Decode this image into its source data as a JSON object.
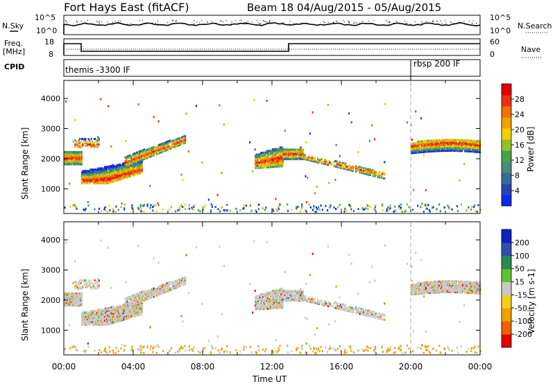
{
  "header": {
    "title": "Fort Hays East (fitACF)",
    "beam_info": "Beam 18 04/Aug/2015 - 05/Aug/2015"
  },
  "top_panels": {
    "nsky_label": "N.Sky",
    "nsky_ticks": [
      "10^5",
      "10^0"
    ],
    "nsearch_ticks": [
      "10^5",
      "10^0"
    ],
    "nsearch_label": "N.Search",
    "freq_label_1": "Freq.",
    "freq_label_2": "[MHz]",
    "freq_ticks": [
      "18",
      "8"
    ],
    "nave_ticks": [
      "60",
      "0"
    ],
    "nave_label": "Nave",
    "cpid_label": "CPID",
    "cpid_mode_1": "themis -3300 IF",
    "cpid_mode_2": "rbsp 200 IF"
  },
  "chart_data": [
    {
      "type": "heatmap",
      "title": "",
      "xlabel": "Time UT",
      "ylabel": "Slant Range [km]",
      "xlim": [
        0,
        24
      ],
      "ylim": [
        180,
        4600
      ],
      "x_ticks": [
        "00:00",
        "04:00",
        "08:00",
        "12:00",
        "16:00",
        "20:00",
        "00:00"
      ],
      "y_ticks": [
        "1000",
        "2000",
        "3000",
        "4000"
      ],
      "colorbar": {
        "label": "Power [dB]",
        "ticks": [
          "4",
          "8",
          "12",
          "16",
          "20",
          "24",
          "28"
        ],
        "range": [
          0,
          30
        ]
      },
      "echo_regions": [
        {
          "t_start": 0.0,
          "t_end": 1.0,
          "range_low": 1750,
          "range_high": 2200
        },
        {
          "t_start": 1.0,
          "t_end": 4.5,
          "range_low": 1100,
          "range_high": 1900
        },
        {
          "t_start": 4.5,
          "t_end": 7.0,
          "range_low": 1800,
          "range_high": 2700
        },
        {
          "t_start": 11.0,
          "t_end": 13.0,
          "range_low": 1700,
          "range_high": 2400
        },
        {
          "t_start": 13.0,
          "t_end": 18.5,
          "range_low": 1300,
          "range_high": 2300
        },
        {
          "t_start": 20.0,
          "t_end": 24.0,
          "range_low": 2100,
          "range_high": 2800
        }
      ]
    },
    {
      "type": "heatmap",
      "title": "",
      "xlabel": "Time UT",
      "ylabel": "Slant Range [km]",
      "xlim": [
        0,
        24
      ],
      "ylim": [
        180,
        4600
      ],
      "x_ticks": [
        "00:00",
        "04:00",
        "08:00",
        "12:00",
        "16:00",
        "20:00",
        "00:00"
      ],
      "y_ticks": [
        "1000",
        "2000",
        "3000",
        "4000"
      ],
      "colorbar": {
        "label": "Velocity [m s-1]",
        "ticks": [
          "200",
          "100",
          "50",
          "15",
          "-15",
          "-50",
          "-100",
          "-200"
        ]
      }
    }
  ],
  "xlabel": "Time UT",
  "colors": {
    "power": [
      "#0a2be6",
      "#2a44b0",
      "#3a6a98",
      "#4a8a78",
      "#46a246",
      "#90c030",
      "#f0d000",
      "#f0a000",
      "#f07000",
      "#e83018",
      "#e00000"
    ],
    "velocity": [
      "#e00000",
      "#f06000",
      "#f0a000",
      "#f0d020",
      "#c8c8c8",
      "#60c030",
      "#2a8a50",
      "#3050a8",
      "#1020c0"
    ]
  }
}
